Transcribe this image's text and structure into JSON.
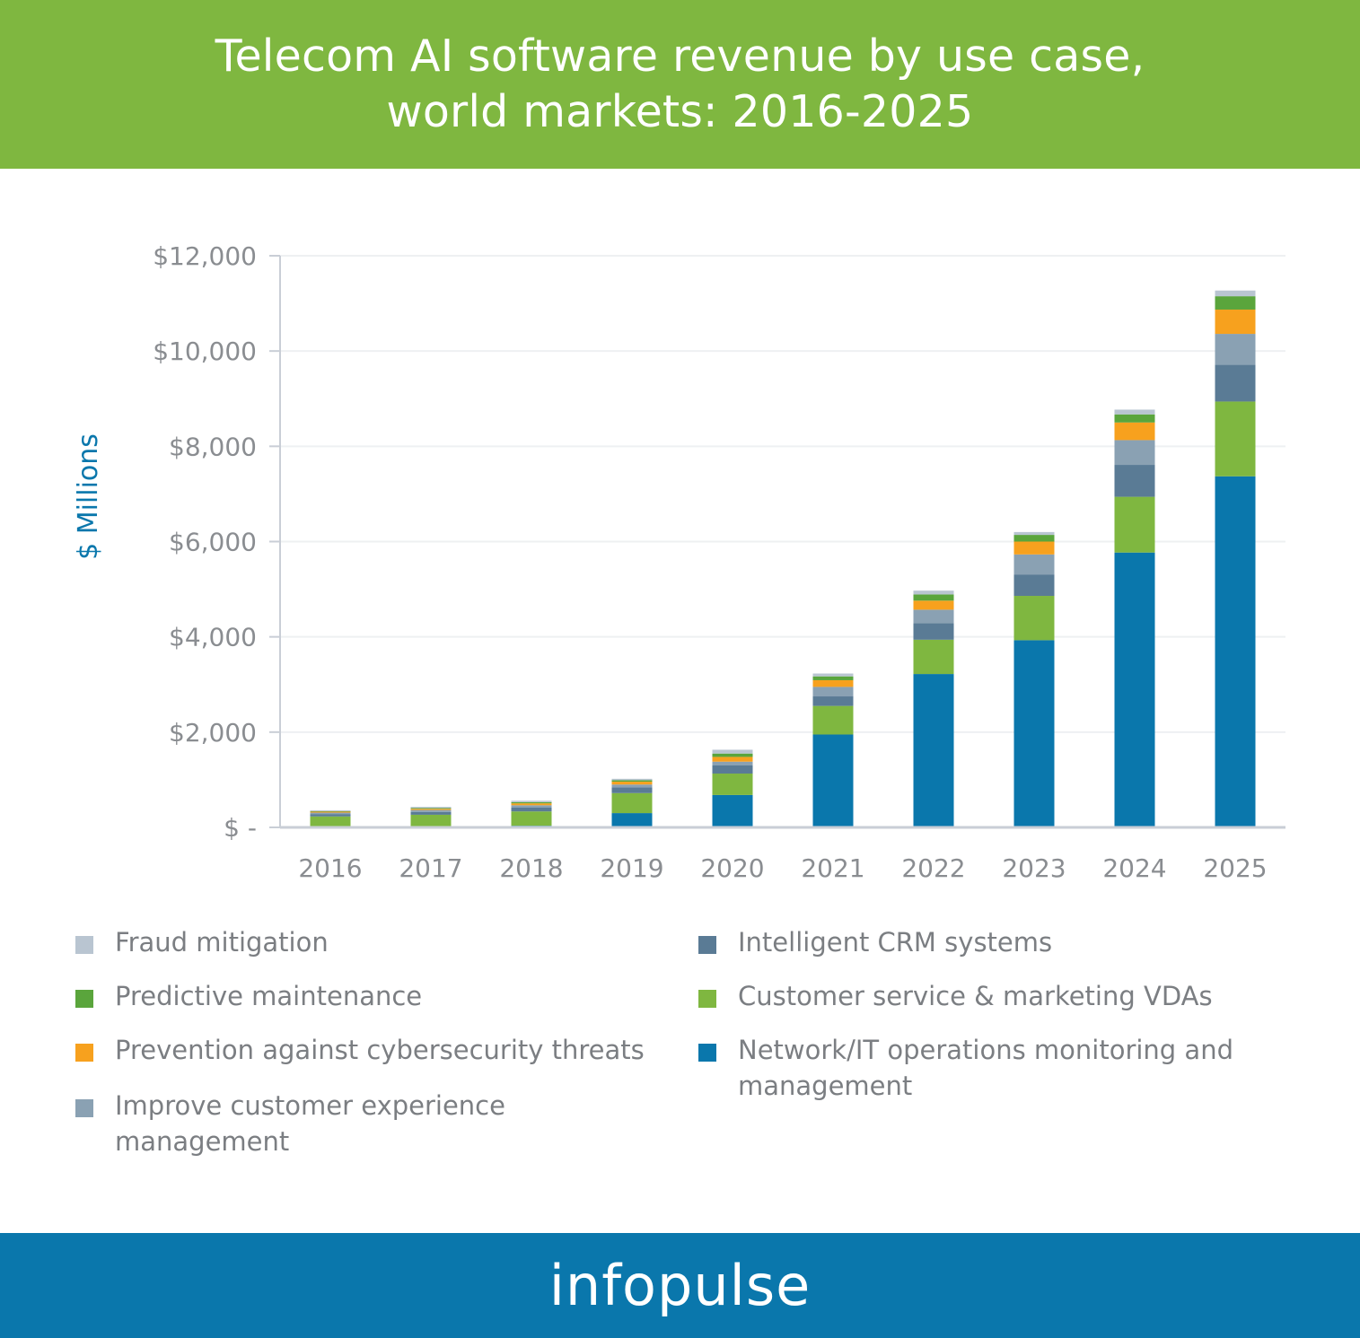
{
  "header": {
    "title_line1": "Telecom AI software revenue by use case,",
    "title_line2": "world markets: 2016-2025"
  },
  "footer": {
    "brand": "infopulse"
  },
  "colors": {
    "header_bg": "#7fb740",
    "footer_bg": "#0a77ac",
    "axis_label": "#0a77ac"
  },
  "chart_data": {
    "type": "bar",
    "stacked": true,
    "title": "Telecom AI software revenue by use case, world markets: 2016-2025",
    "xlabel": "",
    "ylabel": "$ Millions",
    "ylim": [
      0,
      12000
    ],
    "yticks": [
      0,
      2000,
      4000,
      6000,
      8000,
      10000,
      12000
    ],
    "ytick_labels": [
      "$ -",
      "$2,000",
      "$4,000",
      "$6,000",
      "$8,000",
      "$10,000",
      "$12,000"
    ],
    "grid": "horizontal",
    "legend_position": "bottom",
    "categories": [
      "2016",
      "2017",
      "2018",
      "2019",
      "2020",
      "2021",
      "2022",
      "2023",
      "2024",
      "2025"
    ],
    "series": [
      {
        "name": "Network/IT operations monitoring and management",
        "color": "#0a77ac",
        "values": [
          20,
          25,
          35,
          300,
          680,
          1950,
          3220,
          3930,
          5770,
          7370
        ]
      },
      {
        "name": "Customer service & marketing VDAs",
        "color": "#7fb740",
        "values": [
          210,
          240,
          300,
          420,
          450,
          600,
          720,
          930,
          1170,
          1570
        ]
      },
      {
        "name": "Intelligent CRM systems",
        "color": "#5a7b95",
        "values": [
          50,
          60,
          80,
          120,
          170,
          200,
          350,
          450,
          670,
          770
        ]
      },
      {
        "name": "Improve customer experience management",
        "color": "#8aa1b3",
        "values": [
          30,
          40,
          50,
          60,
          80,
          200,
          280,
          420,
          520,
          650
        ]
      },
      {
        "name": "Prevention against cybersecurity threats",
        "color": "#f7a11e",
        "values": [
          20,
          25,
          40,
          60,
          100,
          140,
          190,
          270,
          370,
          510
        ]
      },
      {
        "name": "Predictive maintenance",
        "color": "#5aa53c",
        "values": [
          10,
          15,
          25,
          30,
          70,
          80,
          130,
          140,
          170,
          280
        ]
      },
      {
        "name": "Fraud mitigation",
        "color": "#b9c5d1",
        "values": [
          20,
          25,
          30,
          30,
          80,
          60,
          80,
          60,
          100,
          120
        ]
      }
    ]
  },
  "legend": {
    "left": [
      {
        "label": "Fraud mitigation",
        "color": "#b9c5d1"
      },
      {
        "label": "Predictive maintenance",
        "color": "#5aa53c"
      },
      {
        "label": "Prevention against cybersecurity threats",
        "color": "#f7a11e"
      },
      {
        "label_line1": "Improve customer experience",
        "label_line2": "management",
        "color": "#8aa1b3"
      }
    ],
    "right": [
      {
        "label": "Intelligent CRM systems",
        "color": "#5a7b95"
      },
      {
        "label": "Customer service & marketing VDAs",
        "color": "#7fb740"
      },
      {
        "label_line1": "Network/IT operations monitoring and",
        "label_line2": "management",
        "color": "#0a77ac"
      }
    ]
  }
}
